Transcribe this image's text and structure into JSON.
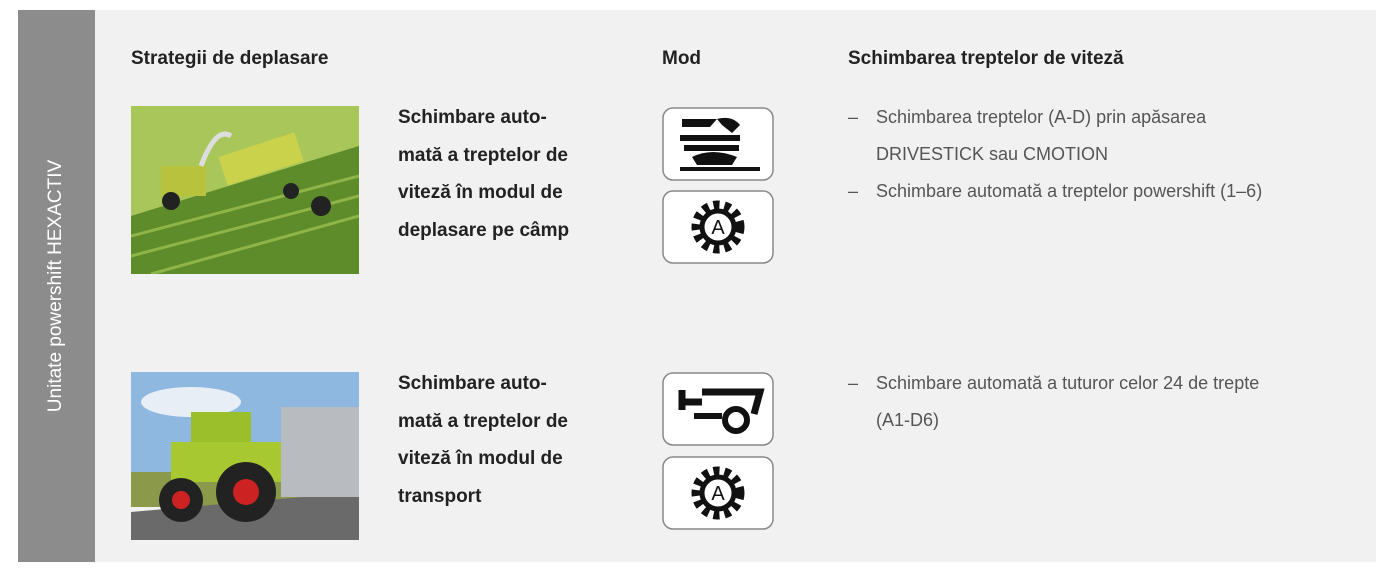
{
  "side_label": "Unitate powershift HEXACTIV",
  "headers": [
    "Strategii de deplasare",
    "Mod",
    "Schimbarea treptelor de viteză"
  ],
  "rows": [
    {
      "title_lines": [
        "Schimbare auto-",
        "mată a treptelor de",
        "viteză în modul de",
        "deplasare pe câmp"
      ],
      "bullets": [
        "Schimbarea treptelor (A-D) prin apăsarea DRIVESTICK sau CMOTION",
        "Schimbare automată a treptelor powershift (1–6)"
      ]
    },
    {
      "title_lines": [
        "Schimbare auto-",
        "mată a treptelor de",
        "viteză în modul de",
        "transport"
      ],
      "bullets": [
        "Schimbare automată a tuturor celor 24 de trepte (A1-D6)"
      ]
    }
  ],
  "gear_letter": "A"
}
